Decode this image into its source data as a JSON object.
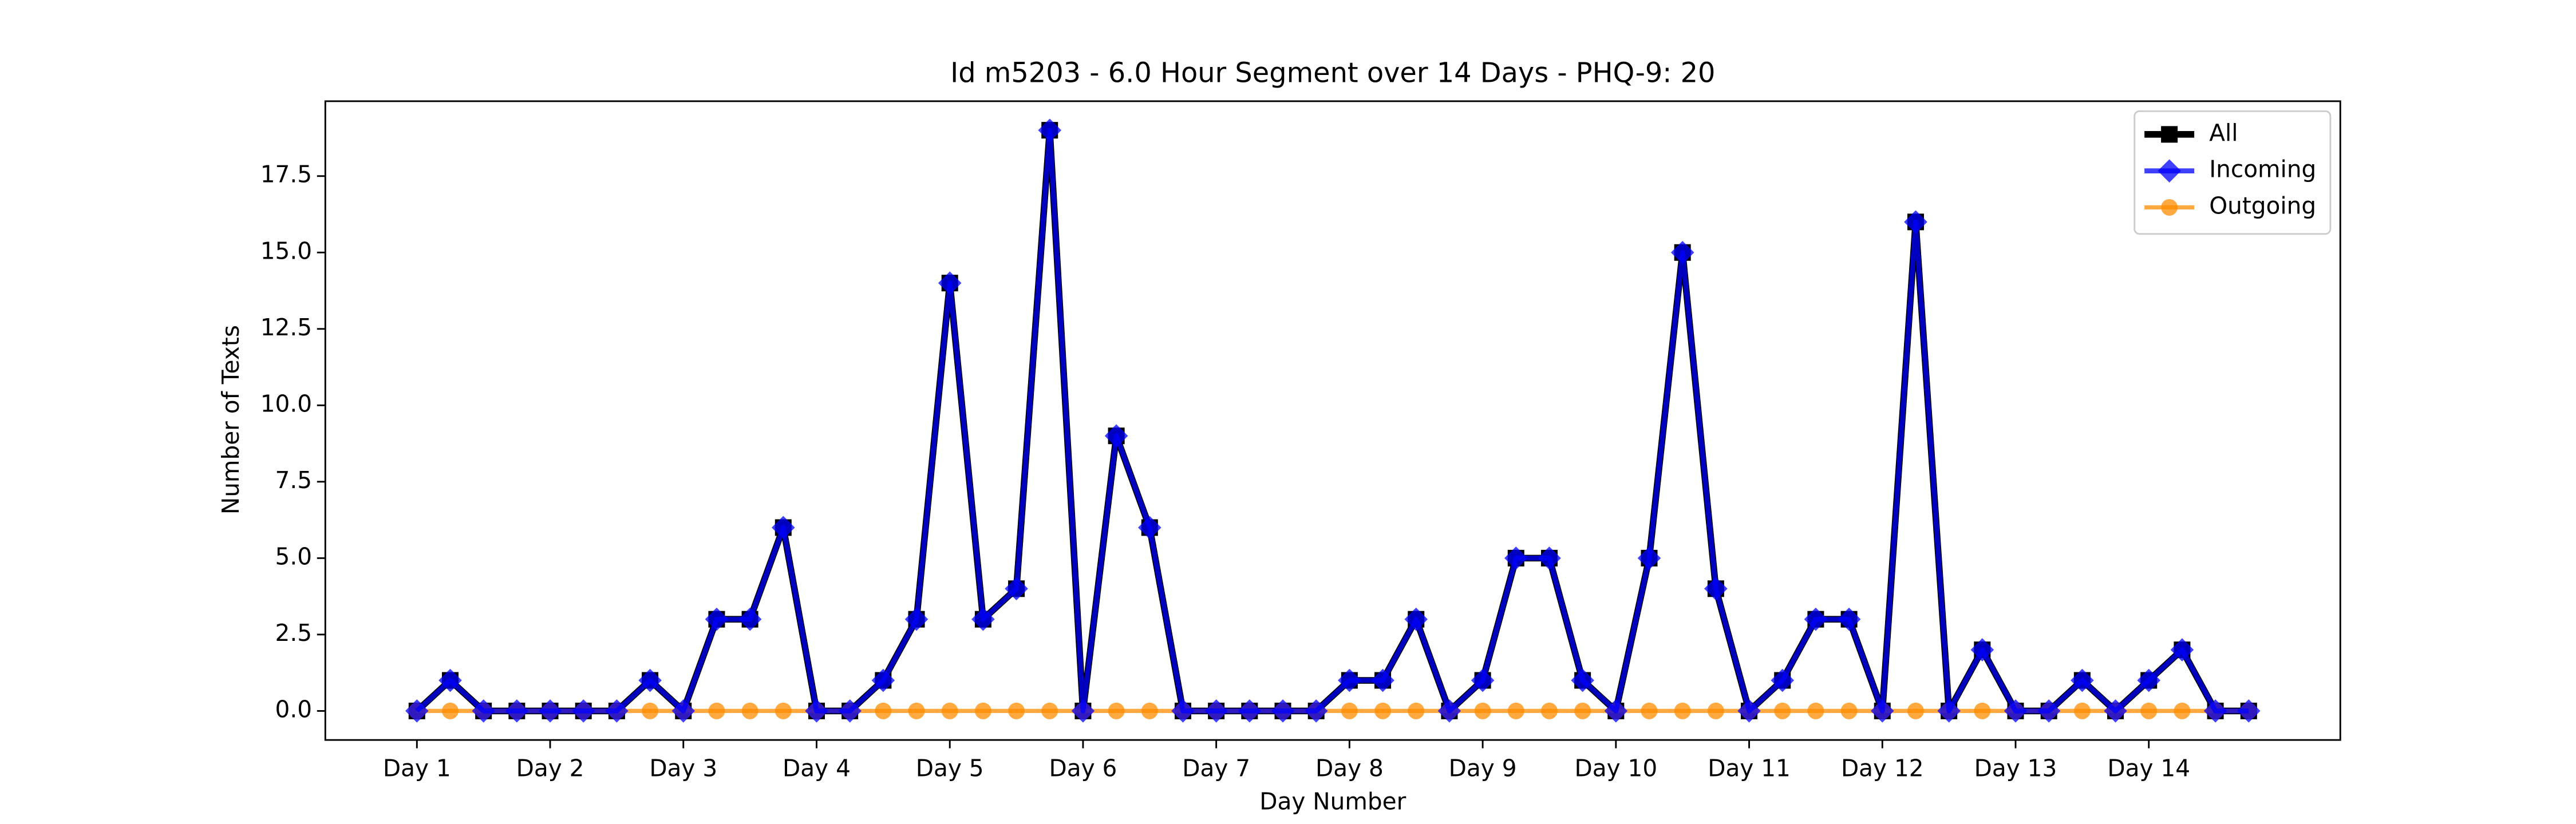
{
  "chart_data": {
    "type": "line",
    "title": "Id m5203 - 6.0 Hour Segment over 14 Days - PHQ-9: 20",
    "x_label": "Day Number",
    "y_label": "Number of Texts",
    "x": [
      0,
      1,
      2,
      3,
      4,
      5,
      6,
      7,
      8,
      9,
      10,
      11,
      12,
      13,
      14,
      15,
      16,
      17,
      18,
      19,
      20,
      21,
      22,
      23,
      24,
      25,
      26,
      27,
      28,
      29,
      30,
      31,
      32,
      33,
      34,
      35,
      36,
      37,
      38,
      39,
      40,
      41,
      42,
      43,
      44,
      45,
      46,
      47,
      48,
      49,
      50,
      51,
      52,
      53,
      54,
      55
    ],
    "xlim": [
      -2.75,
      57.75
    ],
    "xticks": [
      {
        "value": 0,
        "label": "Day 1"
      },
      {
        "value": 4,
        "label": "Day 2"
      },
      {
        "value": 8,
        "label": "Day 3"
      },
      {
        "value": 12,
        "label": "Day 4"
      },
      {
        "value": 16,
        "label": "Day 5"
      },
      {
        "value": 20,
        "label": "Day 6"
      },
      {
        "value": 24,
        "label": "Day 7"
      },
      {
        "value": 28,
        "label": "Day 8"
      },
      {
        "value": 32,
        "label": "Day 9"
      },
      {
        "value": 36,
        "label": "Day 10"
      },
      {
        "value": 40,
        "label": "Day 11"
      },
      {
        "value": 44,
        "label": "Day 12"
      },
      {
        "value": 48,
        "label": "Day 13"
      },
      {
        "value": 52,
        "label": "Day 14"
      }
    ],
    "ylim": [
      -0.95,
      19.95
    ],
    "yticks": [
      {
        "value": 0,
        "label": "0.0"
      },
      {
        "value": 2.5,
        "label": "2.5"
      },
      {
        "value": 5,
        "label": "5.0"
      },
      {
        "value": 7.5,
        "label": "7.5"
      },
      {
        "value": 10,
        "label": "10.0"
      },
      {
        "value": 12.5,
        "label": "12.5"
      },
      {
        "value": 15,
        "label": "15.0"
      },
      {
        "value": 17.5,
        "label": "17.5"
      }
    ],
    "legend": "upper right",
    "series": [
      {
        "name": "All",
        "color": "#000000",
        "marker": "square",
        "linewidth": 4,
        "opacity": 1,
        "values": [
          0,
          1,
          0,
          0,
          0,
          0,
          0,
          1,
          0,
          3,
          3,
          6,
          0,
          0,
          1,
          3,
          14,
          3,
          4,
          19,
          0,
          9,
          6,
          0,
          0,
          0,
          0,
          0,
          1,
          1,
          3,
          0,
          1,
          5,
          5,
          1,
          0,
          5,
          15,
          4,
          0,
          1,
          3,
          3,
          0,
          16,
          0,
          2,
          0,
          0,
          1,
          0,
          1,
          2,
          0,
          0
        ]
      },
      {
        "name": "Incoming",
        "color": "#0000ff",
        "marker": "diamond",
        "linewidth": 3,
        "opacity": 0.75,
        "values": [
          0,
          1,
          0,
          0,
          0,
          0,
          0,
          1,
          0,
          3,
          3,
          6,
          0,
          0,
          1,
          3,
          14,
          3,
          4,
          19,
          0,
          9,
          6,
          0,
          0,
          0,
          0,
          0,
          1,
          1,
          3,
          0,
          1,
          5,
          5,
          1,
          0,
          5,
          15,
          4,
          0,
          1,
          3,
          3,
          0,
          16,
          0,
          2,
          0,
          0,
          1,
          0,
          1,
          2,
          0,
          0
        ]
      },
      {
        "name": "Outgoing",
        "color": "#ff8c00",
        "marker": "circle",
        "linewidth": 2.5,
        "opacity": 0.75,
        "values": [
          0,
          0,
          0,
          0,
          0,
          0,
          0,
          0,
          0,
          0,
          0,
          0,
          0,
          0,
          0,
          0,
          0,
          0,
          0,
          0,
          0,
          0,
          0,
          0,
          0,
          0,
          0,
          0,
          0,
          0,
          0,
          0,
          0,
          0,
          0,
          0,
          0,
          0,
          0,
          0,
          0,
          0,
          0,
          0,
          0,
          0,
          0,
          0,
          0,
          0,
          0,
          0,
          0,
          0,
          0,
          0
        ]
      }
    ]
  }
}
